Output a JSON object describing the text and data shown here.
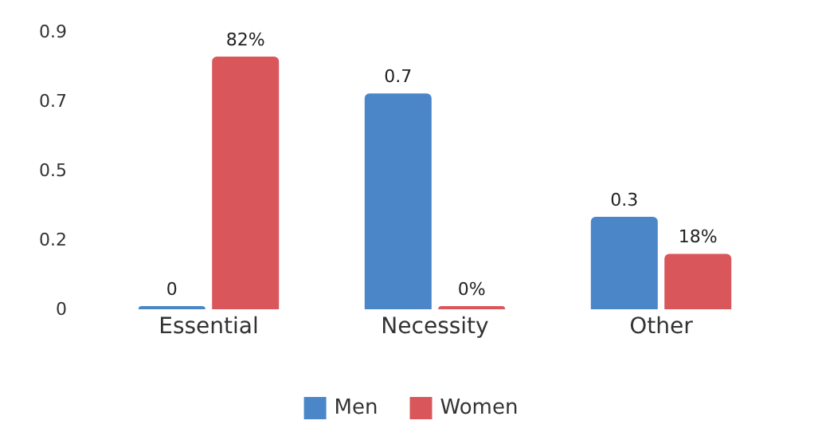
{
  "chart_data": {
    "type": "bar",
    "categories": [
      "Essential",
      "Necessity",
      "Other"
    ],
    "series": [
      {
        "name": "Men",
        "color": "#4a86c8",
        "values": [
          0,
          0.7,
          0.3
        ],
        "value_labels": [
          "0",
          "0.7",
          "0.3"
        ]
      },
      {
        "name": "Women",
        "color": "#d9575a",
        "values": [
          0.82,
          0,
          0.18
        ],
        "value_labels": [
          "82%",
          "0%",
          "18%"
        ]
      }
    ],
    "ylim": [
      0,
      0.9
    ],
    "yticks": [
      0,
      {
        "value": 0.225,
        "label": "0.2"
      },
      {
        "value": 0.45,
        "label": "0.5"
      },
      {
        "value": 0.675,
        "label": "0.7"
      },
      0.9
    ],
    "grid": false,
    "legend": "bottom"
  }
}
